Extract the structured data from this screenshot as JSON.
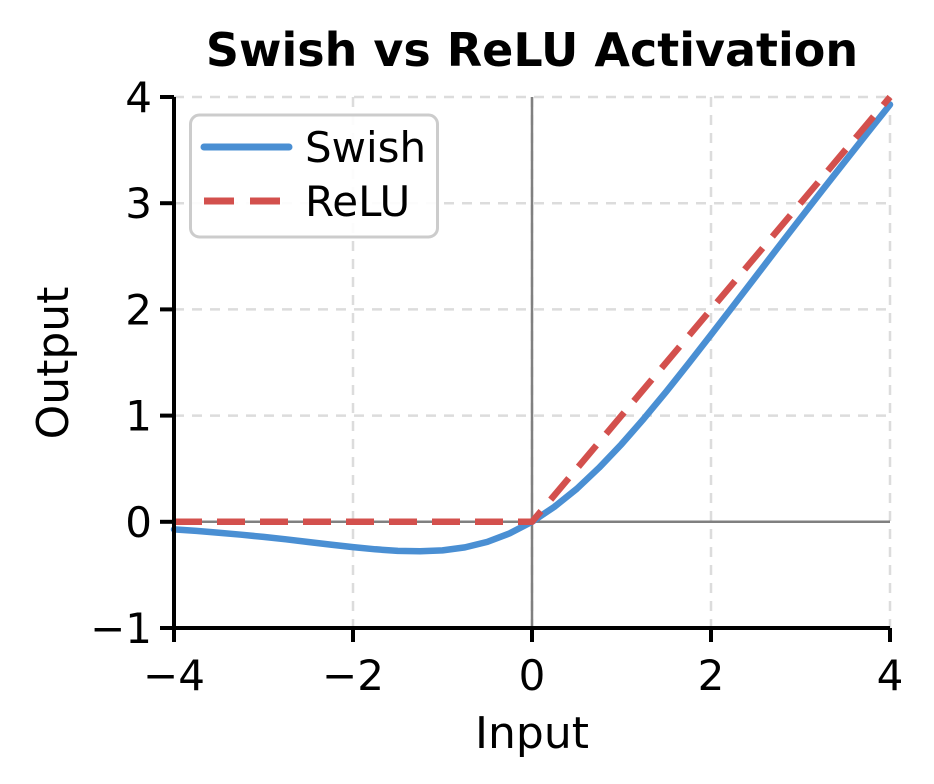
{
  "chart_data": {
    "type": "line",
    "title": "Swish vs ReLU Activation",
    "xlabel": "Input",
    "ylabel": "Output",
    "xlim": [
      -4,
      4
    ],
    "ylim": [
      -1,
      4
    ],
    "xticks": [
      -4,
      -2,
      0,
      2,
      4
    ],
    "xtick_labels": [
      "−4",
      "−2",
      "0",
      "2",
      "4"
    ],
    "yticks": [
      -1,
      0,
      1,
      2,
      3,
      4
    ],
    "ytick_labels": [
      "−1",
      "0",
      "1",
      "2",
      "3",
      "4"
    ],
    "grid": true,
    "grid_style": "dashed",
    "grid_color": "#dcdcdc",
    "zero_lines": {
      "horizontal_at_y": 0,
      "vertical_at_x": 0,
      "color": "#808080"
    },
    "spine_color": "#000000",
    "legend_position": "upper left",
    "legend_border_color": "#cccccc",
    "series": [
      {
        "name": "Swish",
        "style": "solid",
        "color": "#4a8fd3",
        "x": [
          -4,
          -3.75,
          -3.5,
          -3.25,
          -3,
          -2.75,
          -2.5,
          -2.25,
          -2,
          -1.75,
          -1.5,
          -1.25,
          -1,
          -0.75,
          -0.5,
          -0.25,
          0,
          0.25,
          0.5,
          0.75,
          1,
          1.25,
          1.5,
          1.75,
          2,
          2.25,
          2.5,
          2.75,
          3,
          3.25,
          3.5,
          3.75,
          4
        ],
        "y": [
          -0.072,
          -0.086,
          -0.103,
          -0.121,
          -0.142,
          -0.165,
          -0.19,
          -0.215,
          -0.238,
          -0.259,
          -0.274,
          -0.278,
          -0.269,
          -0.241,
          -0.189,
          -0.109,
          0,
          0.141,
          0.311,
          0.509,
          0.731,
          0.972,
          1.226,
          1.491,
          1.762,
          2.035,
          2.31,
          2.585,
          2.858,
          3.129,
          3.397,
          3.664,
          3.928
        ]
      },
      {
        "name": "ReLU",
        "style": "dashed",
        "color": "#d3504d",
        "x": [
          -4,
          0,
          4
        ],
        "y": [
          0,
          0,
          4
        ]
      }
    ]
  }
}
